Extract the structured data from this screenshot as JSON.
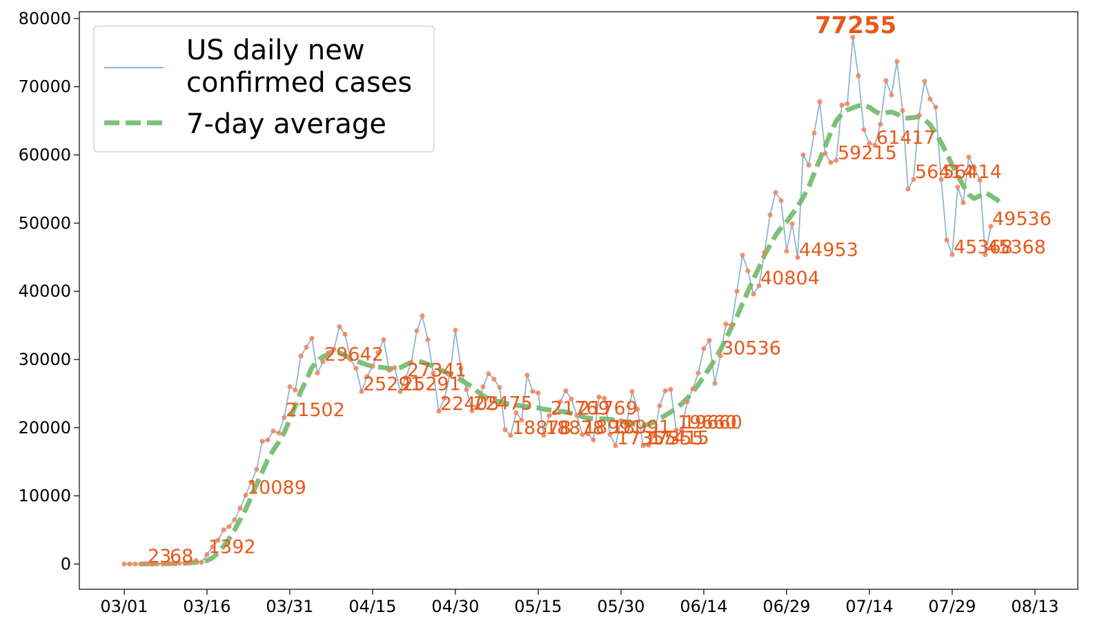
{
  "chart_data": {
    "type": "line",
    "title": "",
    "xlabel": "",
    "ylabel": "",
    "ylim": [
      -3700,
      81000
    ],
    "yticks": [
      0,
      10000,
      20000,
      30000,
      40000,
      50000,
      60000,
      70000,
      80000
    ],
    "xticks": [
      "03/01",
      "03/16",
      "03/31",
      "04/15",
      "04/30",
      "05/15",
      "05/30",
      "06/14",
      "06/29",
      "07/14",
      "07/29",
      "08/13"
    ],
    "start_date": "03/01",
    "legend": {
      "placement": "top-left",
      "entries": [
        "US daily new\nconfirmed cases",
        "7-day average"
      ]
    },
    "colors": {
      "daily_line": "#8fb5cf",
      "daily_markers": "#f0845c",
      "average_line": "#6fb96b",
      "labels": "#e8591a"
    },
    "series": [
      {
        "name": "US daily new\nconfirmed cases",
        "values": [
          0,
          2,
          3,
          7,
          23,
          6,
          19,
          38,
          68,
          75,
          100,
          160,
          300,
          500,
          250,
          1392,
          2500,
          3500,
          5000,
          5500,
          6500,
          8200,
          10089,
          12000,
          13900,
          18000,
          18200,
          19500,
          19200,
          21502,
          26000,
          25500,
          30500,
          31800,
          33100,
          28000,
          29642,
          31000,
          31500,
          34800,
          33700,
          30000,
          28700,
          25291,
          27500,
          29000,
          31000,
          32900,
          28400,
          28800,
          25291,
          27341,
          29500,
          34200,
          36400,
          32900,
          28000,
          22405,
          24300,
          27700,
          34300,
          28700,
          25600,
          22475,
          23200,
          26000,
          27900,
          27100,
          25900,
          19700,
          18878,
          22200,
          21100,
          27700,
          25300,
          25100,
          18878,
          21769,
          22200,
          23800,
          25400,
          24200,
          21769,
          18991,
          19100,
          18200,
          24500,
          24300,
          18991,
          17355,
          21000,
          20400,
          25300,
          22700,
          17355,
          17415,
          18800,
          23200,
          25400,
          25600,
          19660,
          19660,
          23800,
          25700,
          28000,
          31600,
          32800,
          26500,
          30536,
          35200,
          35000,
          40000,
          45300,
          43000,
          39600,
          40804,
          45700,
          51200,
          54500,
          53300,
          45900,
          49900,
          44953,
          60000,
          58500,
          63200,
          67800,
          60200,
          58900,
          59215,
          67300,
          67500,
          77255,
          71600,
          63700,
          61700,
          61417,
          64500,
          70900,
          68800,
          73700,
          66500,
          55000,
          56414,
          65800,
          70800,
          68200,
          67000,
          56414,
          47500,
          45368,
          55300,
          53000,
          59700,
          58100,
          56300,
          45368,
          49536
        ]
      },
      {
        "name": "7-day average",
        "values": [
          null,
          null,
          null,
          9,
          15,
          22,
          30,
          40,
          52,
          68,
          90,
          120,
          180,
          250,
          330,
          500,
          900,
          1600,
          2600,
          3700,
          5000,
          6500,
          8000,
          9800,
          11700,
          13500,
          15300,
          16700,
          17900,
          19300,
          21200,
          23200,
          25300,
          27000,
          28800,
          29800,
          30400,
          30800,
          31200,
          31000,
          30600,
          30100,
          29800,
          29500,
          29200,
          29000,
          28900,
          28800,
          28700,
          28600,
          28800,
          29200,
          29600,
          29800,
          29600,
          29300,
          29000,
          28600,
          28200,
          27800,
          27400,
          27000,
          26500,
          26000,
          25300,
          24700,
          24200,
          24000,
          23800,
          23600,
          23400,
          23300,
          23200,
          23100,
          23000,
          22900,
          22700,
          22600,
          22500,
          22400,
          22300,
          22100,
          21900,
          21600,
          21400,
          21300,
          21300,
          21300,
          21200,
          21100,
          21000,
          20800,
          20600,
          20400,
          20300,
          20500,
          20800,
          21300,
          21800,
          22300,
          22800,
          23500,
          24300,
          25200,
          26300,
          27500,
          28700,
          30000,
          31400,
          33000,
          34700,
          36300,
          38200,
          40000,
          41800,
          43500,
          45300,
          46800,
          48200,
          49300,
          50200,
          51300,
          52400,
          53800,
          55300,
          57300,
          59300,
          61300,
          63300,
          65000,
          66000,
          66600,
          66900,
          67200,
          67300,
          67000,
          66400,
          66000,
          66200,
          66300,
          66000,
          65500,
          65400,
          65500,
          65600,
          65200,
          64400,
          63200,
          61800,
          60200,
          58500,
          57000,
          55500,
          54200,
          53600,
          54000,
          54500,
          54000,
          53500,
          52800
        ]
      }
    ],
    "annotations": [
      {
        "index": 4,
        "text": "23"
      },
      {
        "index": 8,
        "text": "68"
      },
      {
        "index": 15,
        "text": "1392"
      },
      {
        "index": 22,
        "text": "10089"
      },
      {
        "index": 29,
        "text": "21502"
      },
      {
        "index": 36,
        "text": "29642"
      },
      {
        "index": 43,
        "text": "25291"
      },
      {
        "index": 50,
        "text": "25291"
      },
      {
        "index": 51,
        "text": "27341"
      },
      {
        "index": 57,
        "text": "22405"
      },
      {
        "index": 63,
        "text": "22475"
      },
      {
        "index": 70,
        "text": "18878"
      },
      {
        "index": 76,
        "text": "18878"
      },
      {
        "index": 77,
        "text": "21769"
      },
      {
        "index": 82,
        "text": "21769"
      },
      {
        "index": 83,
        "text": "18991"
      },
      {
        "index": 88,
        "text": "18991"
      },
      {
        "index": 89,
        "text": "17355"
      },
      {
        "index": 94,
        "text": "17355"
      },
      {
        "index": 95,
        "text": "17415"
      },
      {
        "index": 100,
        "text": "19660"
      },
      {
        "index": 101,
        "text": "19660"
      },
      {
        "index": 108,
        "text": "30536"
      },
      {
        "index": 115,
        "text": "40804"
      },
      {
        "index": 122,
        "text": "44953"
      },
      {
        "index": 129,
        "text": "59215"
      },
      {
        "index": 136,
        "text": "61417"
      },
      {
        "index": 143,
        "text": "56414"
      },
      {
        "index": 148,
        "text": "56414"
      },
      {
        "index": 150,
        "text": "45368"
      },
      {
        "index": 156,
        "text": "45368"
      },
      {
        "index": 157,
        "text": "49536"
      }
    ],
    "peak": {
      "index": 132,
      "value": 77255,
      "text": "77255"
    }
  }
}
